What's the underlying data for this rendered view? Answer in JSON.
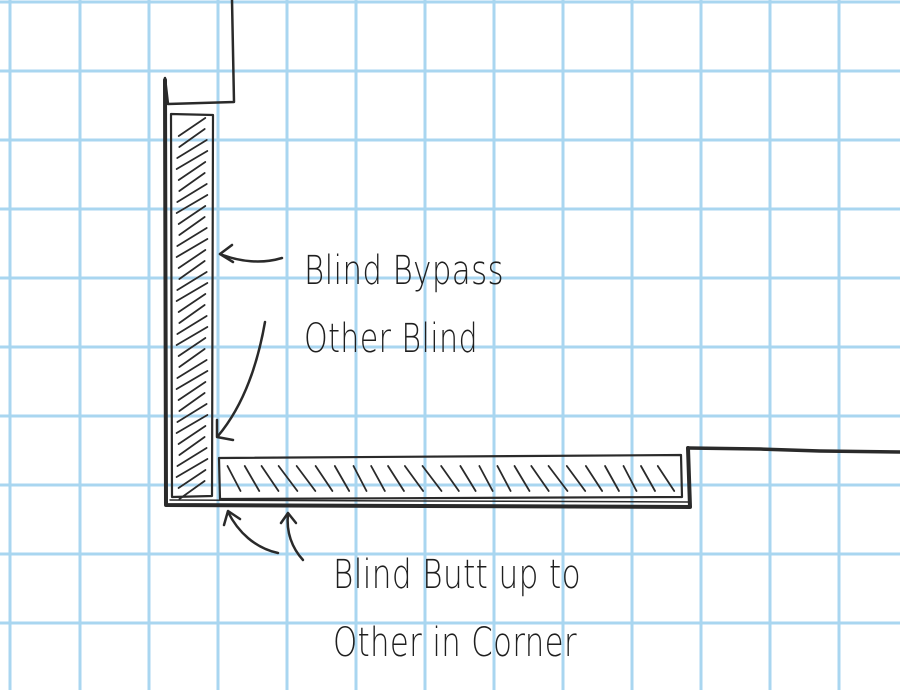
{
  "annotations": [
    {
      "id": "bypass",
      "lines": [
        "Blind Bypass",
        "Other Blind"
      ]
    },
    {
      "id": "butt",
      "lines": [
        "Blind Butt up to",
        "Other in Corner"
      ]
    }
  ],
  "colors": {
    "grid": "#a9d6f0",
    "ink": "#2a2a2a",
    "background": "#ffffff"
  }
}
